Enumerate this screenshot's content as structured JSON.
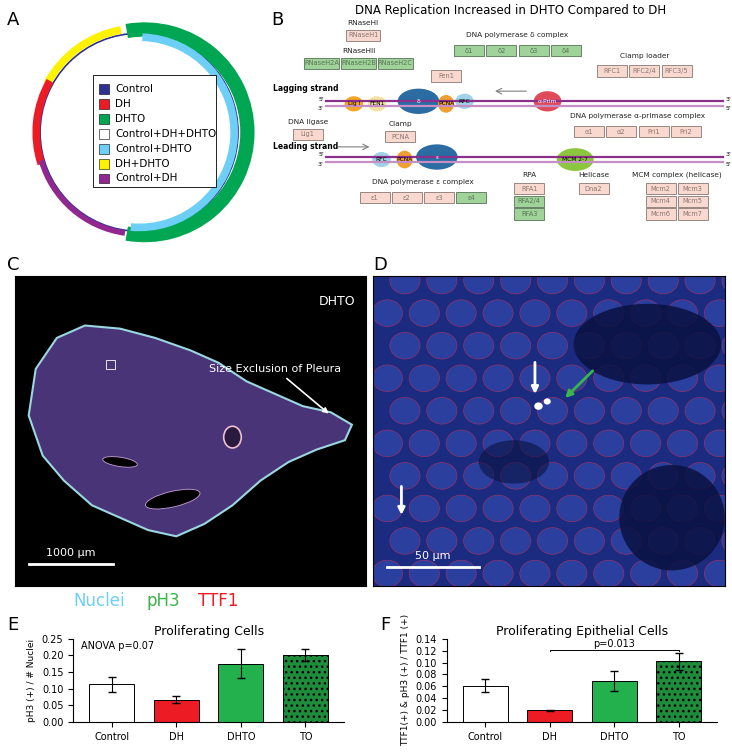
{
  "panel_A": {
    "letter": "A",
    "legend": [
      {
        "name": "Control",
        "color": "#2e3192"
      },
      {
        "name": "DH",
        "color": "#ed1c24"
      },
      {
        "name": "DHTO",
        "color": "#00a651"
      },
      {
        "name": "Control+DH+DHTO",
        "color": "#ffffff"
      },
      {
        "name": "Control+DHTO",
        "color": "#6dcff6"
      },
      {
        "name": "DH+DHTO",
        "color": "#fff200"
      },
      {
        "name": "Control+DH",
        "color": "#92278f"
      }
    ]
  },
  "panel_B": {
    "letter": "B",
    "title": "DNA Replication Increased in DHTO Compared to DH",
    "strand_labels": [
      "Lagging strand",
      "Leading strand"
    ],
    "end_labels": [
      "5'",
      "3'"
    ],
    "groups": [
      {
        "label": "RNaseHI",
        "boxes": [
          {
            "text": "RNaseH1",
            "color": "#f9d9cf"
          }
        ]
      },
      {
        "label": "RNaseHII",
        "boxes": [
          {
            "text": "RNaseH2A",
            "color": "#9fd39a"
          },
          {
            "text": "RNaseH2B",
            "color": "#9fd39a"
          },
          {
            "text": "RNaseH2C",
            "color": "#9fd39a"
          }
        ]
      },
      {
        "label": "DNA polymerase δ complex",
        "boxes": [
          {
            "text": "δ1",
            "color": "#9fd39a"
          },
          {
            "text": "δ2",
            "color": "#9fd39a"
          },
          {
            "text": "δ3",
            "color": "#9fd39a"
          },
          {
            "text": "δ4",
            "color": "#9fd39a"
          }
        ]
      },
      {
        "boxes": [
          {
            "text": "Fen1",
            "color": "#f9d9cf"
          }
        ]
      },
      {
        "label": "Clamp loader",
        "boxes": [
          {
            "text": "RFC1",
            "color": "#f9d9cf"
          },
          {
            "text": "RFC2/4",
            "color": "#f9d9cf"
          },
          {
            "text": "RFC3/5",
            "color": "#f9d9cf"
          }
        ]
      },
      {
        "label": "DNA ligase",
        "boxes": [
          {
            "text": "Lig1",
            "color": "#f9d9cf"
          }
        ]
      },
      {
        "label": "Clamp",
        "boxes": [
          {
            "text": "PCNA",
            "color": "#f9d9cf"
          }
        ]
      },
      {
        "label": "DNA polymerase α-primase complex",
        "boxes": [
          {
            "text": "α1",
            "color": "#f9d9cf"
          },
          {
            "text": "α2",
            "color": "#f9d9cf"
          },
          {
            "text": "Pri1",
            "color": "#f9d9cf"
          },
          {
            "text": "Pri2",
            "color": "#f9d9cf"
          }
        ]
      },
      {
        "label": "DNA polymerase ε complex",
        "boxes": [
          {
            "text": "ε1",
            "color": "#f9d9cf"
          },
          {
            "text": "ε2",
            "color": "#f9d9cf"
          },
          {
            "text": "ε3",
            "color": "#f9d9cf"
          },
          {
            "text": "ε4",
            "color": "#9fd39a"
          }
        ]
      },
      {
        "label": "RPA",
        "boxes": [
          {
            "text": "RFA1",
            "color": "#f9d9cf"
          },
          {
            "text": "RFA2/4",
            "color": "#9fd39a"
          },
          {
            "text": "RFA3",
            "color": "#9fd39a"
          }
        ]
      },
      {
        "label": "Helicase",
        "boxes": [
          {
            "text": "Dna2",
            "color": "#f9d9cf"
          }
        ]
      },
      {
        "label": "MCM complex (helicase)",
        "boxes": [
          {
            "text": "Mcm2",
            "color": "#f9d9cf"
          },
          {
            "text": "Mcm3",
            "color": "#f9d9cf"
          },
          {
            "text": "Mcm4",
            "color": "#f9d9cf"
          },
          {
            "text": "Mcm5",
            "color": "#f9d9cf"
          },
          {
            "text": "Mcm6",
            "color": "#f9d9cf"
          },
          {
            "text": "Mcm7",
            "color": "#f9d9cf"
          }
        ]
      }
    ],
    "proteins": [
      "Lig I",
      "FEN1",
      "δ",
      "PCNA",
      "RFC",
      "α-Prim",
      "RFC",
      "PCNA",
      "ε",
      "MCM 2-7"
    ]
  },
  "panel_C": {
    "letter": "C",
    "title": "DHTO",
    "annotation": "Size Exclusion of Pleura",
    "scale_bar": "1000 µm",
    "stains": [
      {
        "name": "Nuclei",
        "color": "#6dcff6"
      },
      {
        "name": "pH3",
        "color": "#39b54a"
      },
      {
        "name": "TTF1",
        "color": "#ed1c24"
      }
    ]
  },
  "panel_D": {
    "letter": "D",
    "scale_bar": "50 µm"
  },
  "chart_data": [
    {
      "panel": "E",
      "type": "bar",
      "title": "Proliferating Cells",
      "y_label": "pH3 (+) / # Nuclei",
      "categories": [
        "Control",
        "DH",
        "DHTO",
        "TO"
      ],
      "values": [
        0.113,
        0.067,
        0.175,
        0.202
      ],
      "errors": [
        0.023,
        0.011,
        0.043,
        0.018
      ],
      "colors": [
        "#ffffff",
        "#ed1c24",
        "#22b14c",
        "#1e8c3a"
      ],
      "ylim": [
        0,
        0.25
      ],
      "yticks": [
        {
          "value": 0,
          "label": "0.00"
        },
        0.05,
        {
          "value": 0.1,
          "label": "0.10"
        },
        0.15,
        {
          "value": 0.2,
          "label": "0.20"
        },
        0.25
      ],
      "annotations": [
        "ANOVA p=0.07"
      ]
    },
    {
      "panel": "F",
      "type": "bar",
      "title": "Proliferating Epithelial Cells",
      "y_label": "TTF1(+) & pH3 (+) / TTF1 (+)",
      "categories": [
        "Control",
        "DH",
        "DHTO",
        "TO"
      ],
      "values": [
        0.061,
        0.02,
        0.069,
        0.102
      ],
      "errors": [
        0.011,
        0.001,
        0.017,
        0.014
      ],
      "colors": [
        "#ffffff",
        "#ed1c24",
        "#22b14c",
        "#1e8c3a"
      ],
      "ylim": [
        0,
        0.14
      ],
      "yticks": [
        {
          "value": 0,
          "label": "0.00"
        },
        0.02,
        0.04,
        0.06,
        0.08,
        {
          "value": 0.1,
          "label": "0.10"
        },
        0.12,
        0.14
      ],
      "comparison": {
        "categories": [
          "DH",
          "TO"
        ],
        "label": "p=0.013"
      }
    }
  ]
}
